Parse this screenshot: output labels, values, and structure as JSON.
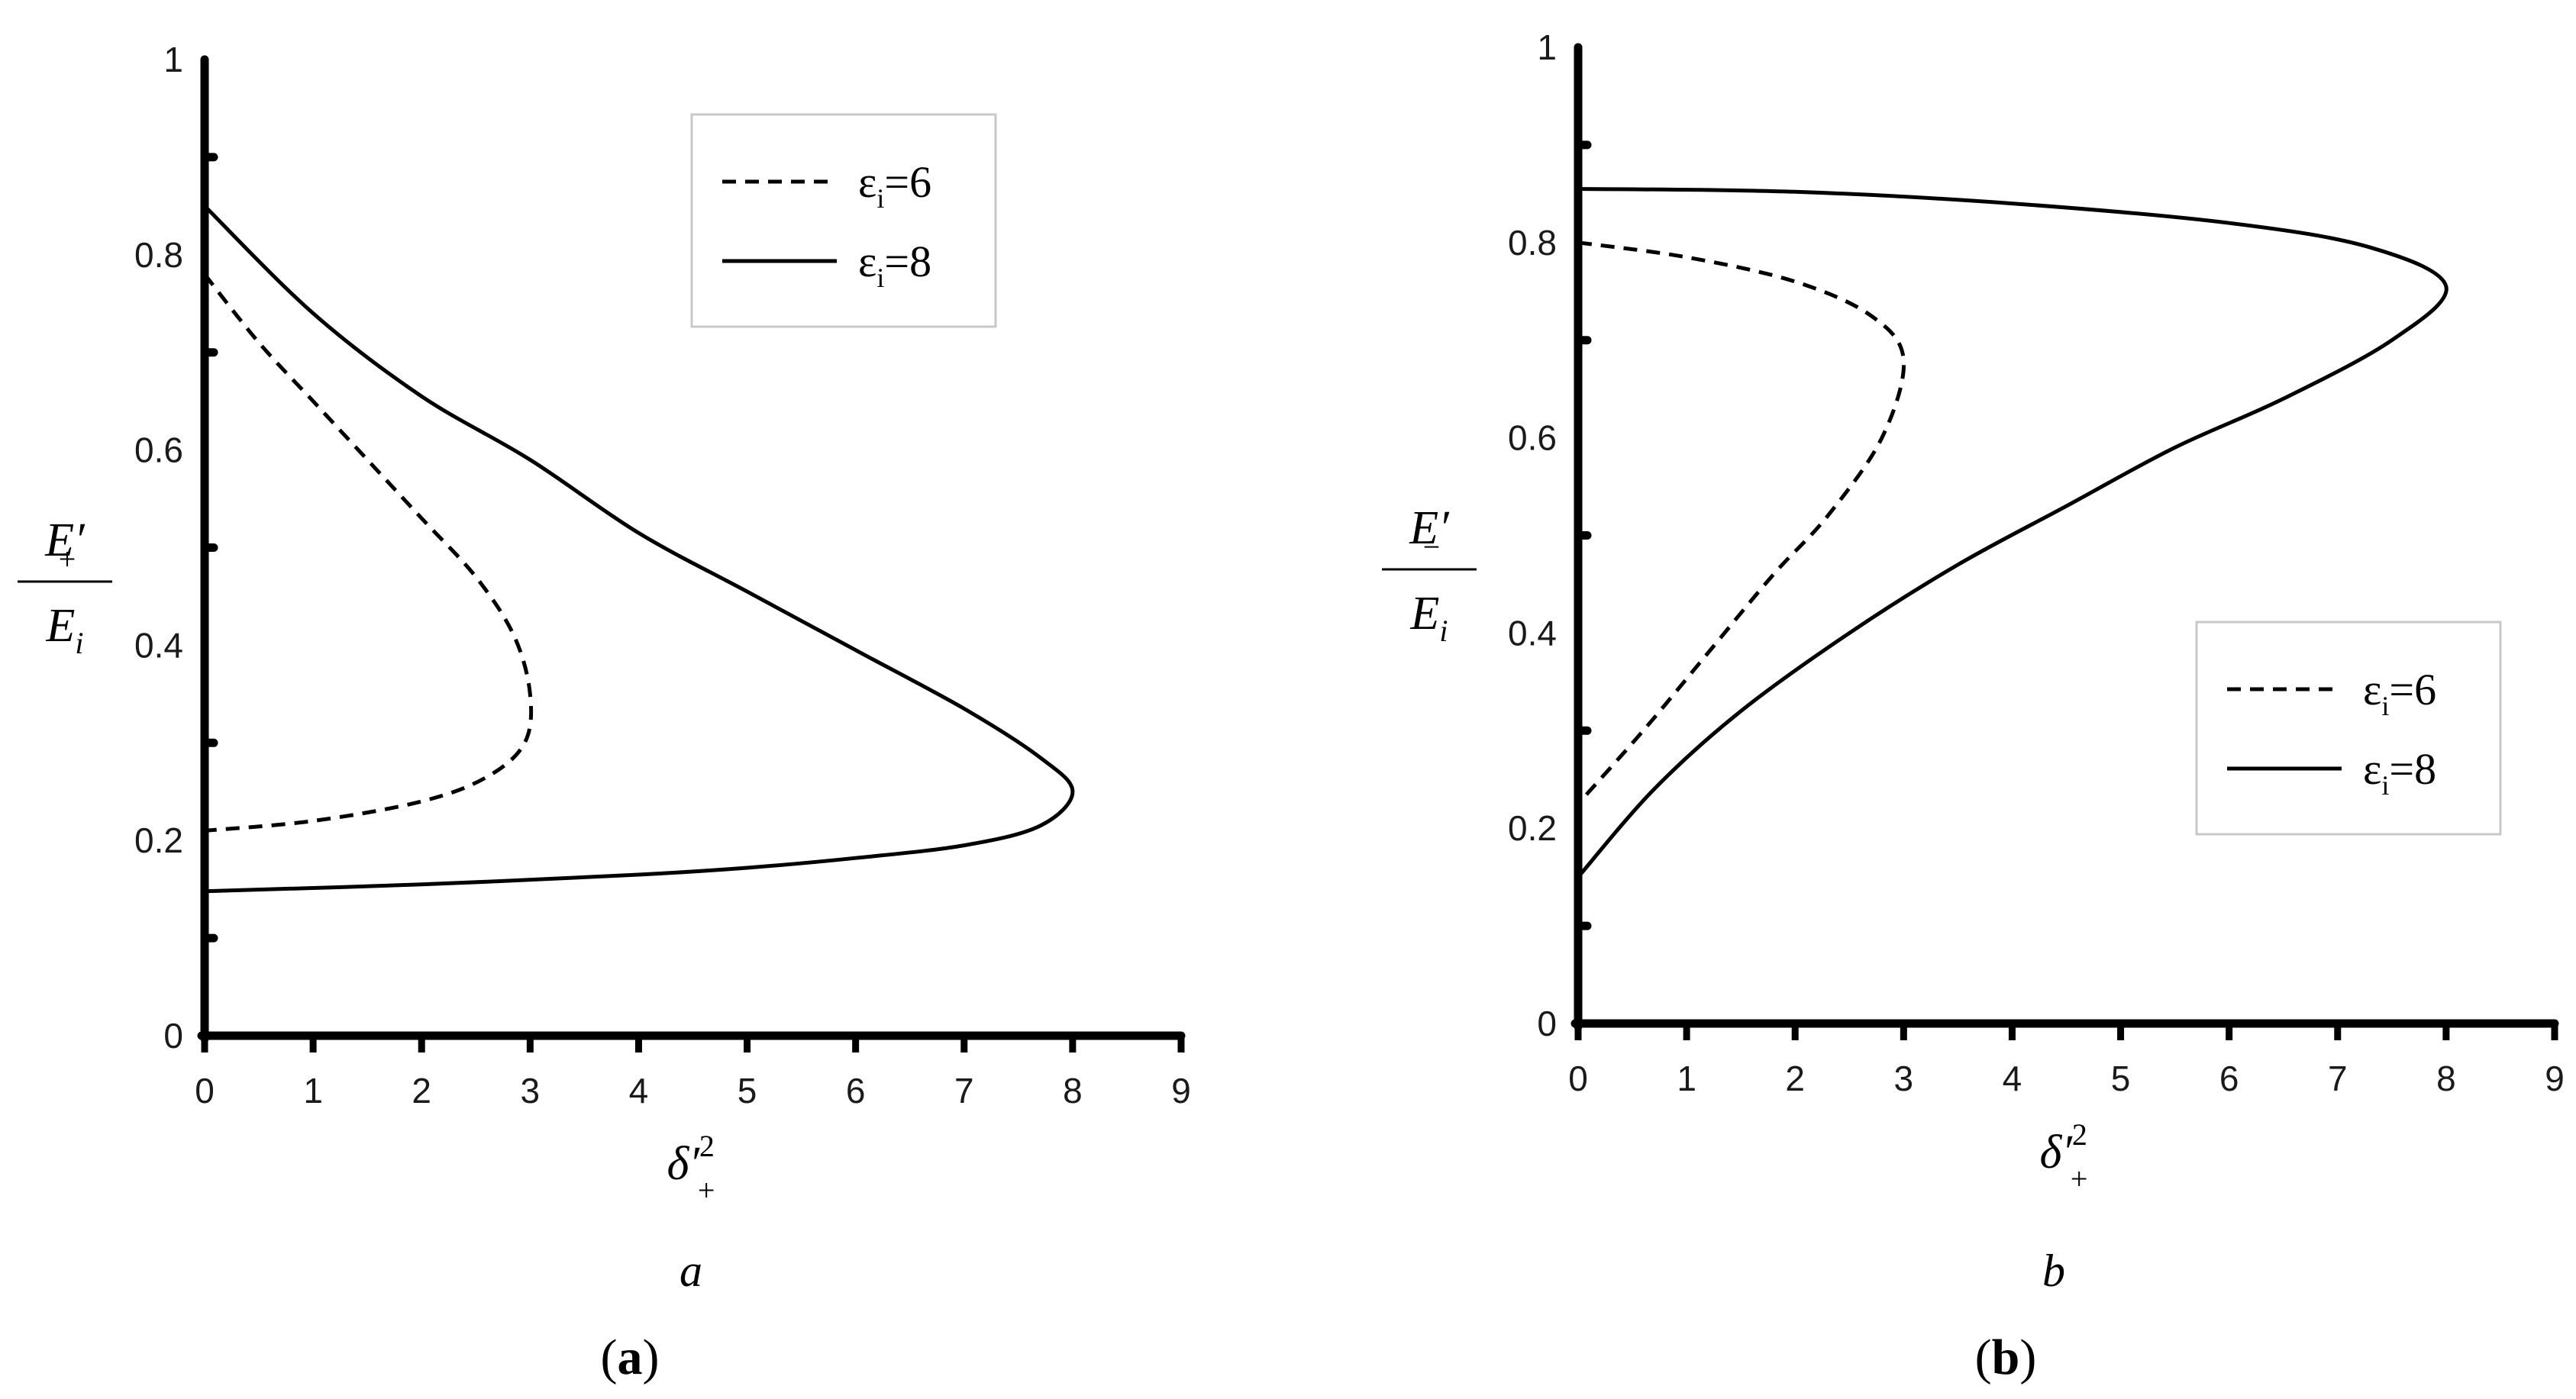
{
  "chart_data": [
    {
      "panel_id": "a",
      "type": "line",
      "ylabel": {
        "numerator": "E′",
        "numerator_sub": "+",
        "denominator": "E",
        "denominator_sub": "i"
      },
      "xlabel": {
        "base": "δ′",
        "sub": "+",
        "sup": "2"
      },
      "subcaption": "a",
      "caption_letter": "a",
      "xlim": [
        0,
        9
      ],
      "ylim": [
        0,
        1
      ],
      "xticks": [
        "0",
        "1",
        "2",
        "3",
        "4",
        "5",
        "6",
        "7",
        "8",
        "9"
      ],
      "yticks": [
        {
          "v": 0,
          "t": "0"
        },
        {
          "v": 0.2,
          "t": "0.2"
        },
        {
          "v": 0.4,
          "t": "0.4"
        },
        {
          "v": 0.6,
          "t": "0.6"
        },
        {
          "v": 0.8,
          "t": "0.8"
        },
        {
          "v": 1,
          "t": "1"
        }
      ],
      "minor_y": [
        0.1,
        0.3,
        0.5,
        0.7,
        0.9
      ],
      "legend": {
        "position": "top-right"
      },
      "series": [
        {
          "name": "εi=6",
          "label_base": "ε",
          "label_sub": "i",
          "label_rest": "=6",
          "style": "dashed",
          "points": [
            [
              0.0,
              0.78
            ],
            [
              0.5,
              0.71
            ],
            [
              1.0,
              0.65
            ],
            [
              1.5,
              0.59
            ],
            [
              2.0,
              0.53
            ],
            [
              2.5,
              0.47
            ],
            [
              2.85,
              0.41
            ],
            [
              3.0,
              0.35
            ],
            [
              2.95,
              0.3
            ],
            [
              2.6,
              0.265
            ],
            [
              2.0,
              0.24
            ],
            [
              1.0,
              0.22
            ],
            [
              0.0,
              0.21
            ]
          ]
        },
        {
          "name": "εi=8",
          "label_base": "ε",
          "label_sub": "i",
          "label_rest": "=8",
          "style": "solid",
          "points": [
            [
              0.0,
              0.85
            ],
            [
              1.0,
              0.74
            ],
            [
              2.0,
              0.655
            ],
            [
              3.0,
              0.59
            ],
            [
              4.0,
              0.515
            ],
            [
              5.0,
              0.455
            ],
            [
              6.0,
              0.395
            ],
            [
              7.0,
              0.335
            ],
            [
              7.7,
              0.285
            ],
            [
              8.0,
              0.25
            ],
            [
              7.7,
              0.215
            ],
            [
              7.0,
              0.195
            ],
            [
              6.0,
              0.182
            ],
            [
              5.0,
              0.172
            ],
            [
              4.0,
              0.165
            ],
            [
              2.0,
              0.155
            ],
            [
              0.0,
              0.148
            ]
          ]
        }
      ]
    },
    {
      "panel_id": "b",
      "type": "line",
      "ylabel": {
        "numerator": "E′",
        "numerator_sub": "−",
        "denominator": "E",
        "denominator_sub": "i"
      },
      "xlabel": {
        "base": "δ′",
        "sub": "+",
        "sup": "2"
      },
      "subcaption": "b",
      "caption_letter": "b",
      "xlim": [
        0,
        9
      ],
      "ylim": [
        0,
        1
      ],
      "xticks": [
        "0",
        "1",
        "2",
        "3",
        "4",
        "5",
        "6",
        "7",
        "8",
        "9"
      ],
      "yticks": [
        {
          "v": 0,
          "t": "0"
        },
        {
          "v": 0.2,
          "t": "0.2"
        },
        {
          "v": 0.4,
          "t": "0.4"
        },
        {
          "v": 0.6,
          "t": "0.6"
        },
        {
          "v": 0.8,
          "t": "0.8"
        },
        {
          "v": 1,
          "t": "1"
        }
      ],
      "minor_y": [
        0.1,
        0.3,
        0.5,
        0.7,
        0.9
      ],
      "legend": {
        "position": "lower-right"
      },
      "series": [
        {
          "name": "εi=6",
          "label_base": "ε",
          "label_sub": "i",
          "label_rest": "=6",
          "style": "dashed",
          "points": [
            [
              0.0,
              0.8
            ],
            [
              1.0,
              0.785
            ],
            [
              2.0,
              0.76
            ],
            [
              2.7,
              0.725
            ],
            [
              3.0,
              0.68
            ],
            [
              2.8,
              0.6
            ],
            [
              2.3,
              0.52
            ],
            [
              1.8,
              0.46
            ],
            [
              1.2,
              0.38
            ],
            [
              0.6,
              0.3
            ],
            [
              0.0,
              0.225
            ]
          ]
        },
        {
          "name": "εi=8",
          "label_base": "ε",
          "label_sub": "i",
          "label_rest": "=8",
          "style": "solid",
          "points": [
            [
              0.0,
              0.855
            ],
            [
              2.0,
              0.852
            ],
            [
              4.0,
              0.84
            ],
            [
              6.0,
              0.82
            ],
            [
              7.3,
              0.795
            ],
            [
              8.0,
              0.755
            ],
            [
              7.5,
              0.7
            ],
            [
              6.5,
              0.64
            ],
            [
              5.5,
              0.59
            ],
            [
              4.5,
              0.53
            ],
            [
              3.5,
              0.47
            ],
            [
              2.5,
              0.4
            ],
            [
              1.5,
              0.32
            ],
            [
              0.7,
              0.24
            ],
            [
              0.0,
              0.15
            ]
          ]
        }
      ]
    }
  ]
}
